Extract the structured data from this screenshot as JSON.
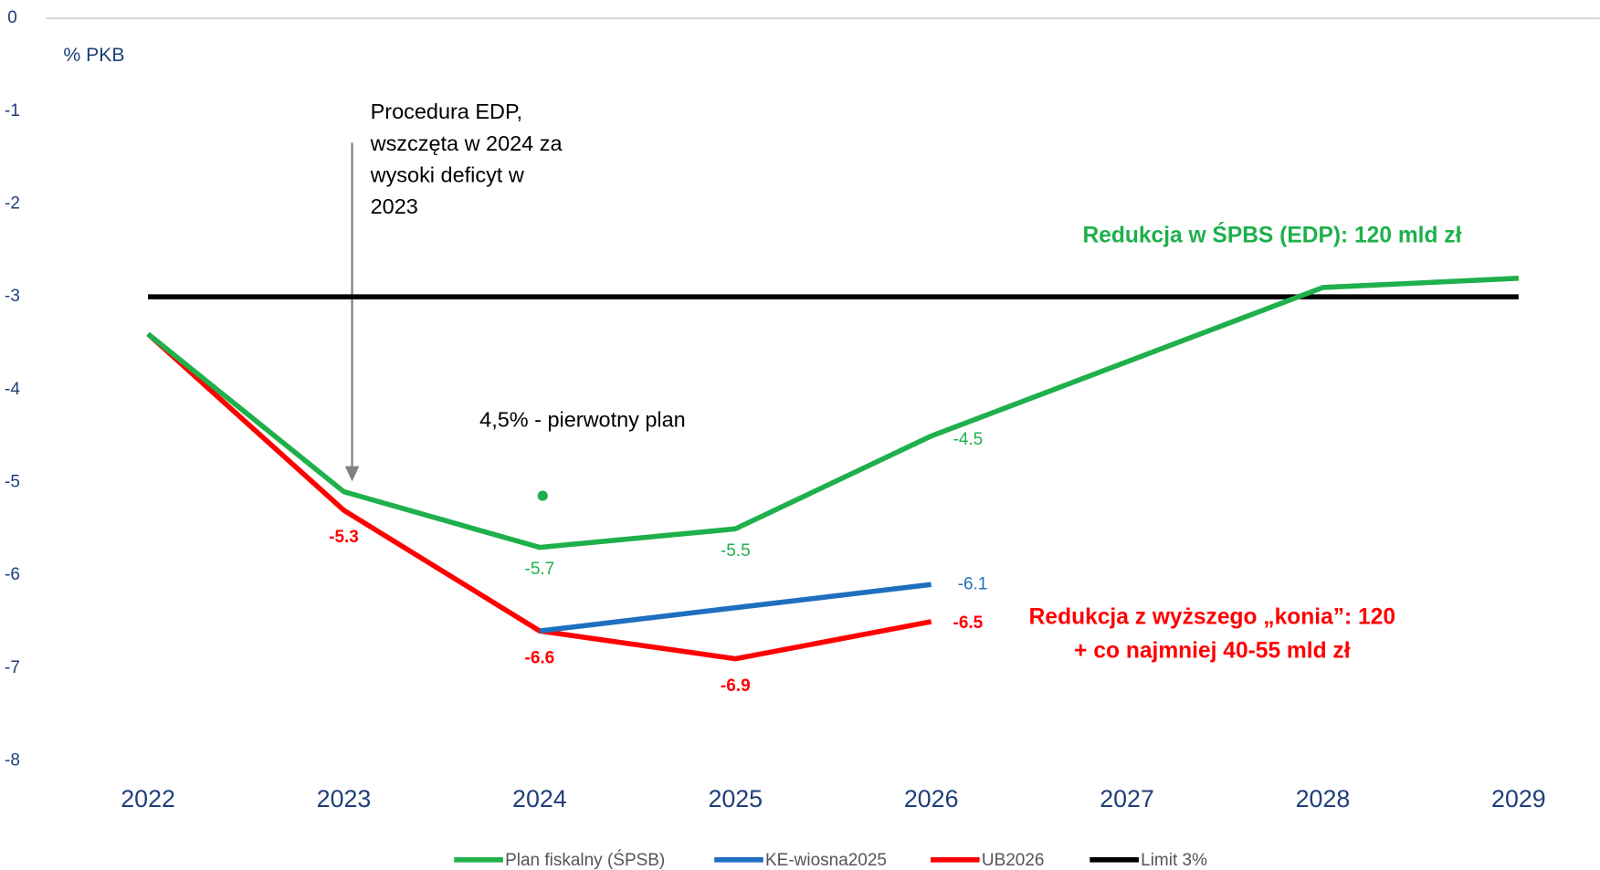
{
  "chart_data": {
    "type": "line",
    "y_axis_label": "% PKB",
    "categories": [
      "2022",
      "2023",
      "2024",
      "2025",
      "2026",
      "2027",
      "2028",
      "2029"
    ],
    "series": [
      {
        "name": "Plan fiskalny (ŚPSB)",
        "color": "#1fb04b",
        "values": [
          -3.4,
          -5.1,
          -5.7,
          -5.5,
          -4.5,
          -3.7,
          -2.9,
          -2.8
        ],
        "value_labels": [
          null,
          null,
          "-5.7",
          "-5.5",
          "-4.5",
          null,
          null,
          null
        ]
      },
      {
        "name": "KE-wiosna2025",
        "color": "#1f6fc0",
        "values": [
          null,
          null,
          -6.6,
          -6.35,
          -6.1,
          null,
          null,
          null
        ],
        "value_labels": [
          null,
          null,
          null,
          null,
          "-6.1",
          null,
          null,
          null
        ]
      },
      {
        "name": "UB2026",
        "color": "#ff0000",
        "values": [
          -3.4,
          -5.3,
          -6.6,
          -6.9,
          -6.5,
          null,
          null,
          null
        ],
        "value_labels": [
          null,
          "-5.3",
          "-6.6",
          "-6.9",
          "-6.5",
          null,
          null,
          null
        ]
      },
      {
        "name": "Limit 3%",
        "color": "#000000",
        "values": [
          -3,
          -3,
          -3,
          -3,
          -3,
          -3,
          -3,
          -3
        ]
      }
    ],
    "ylim": [
      -8,
      0
    ],
    "yticks": [
      0,
      -1,
      -2,
      -3,
      -4,
      -5,
      -6,
      -7,
      -8
    ],
    "legend": "bottom",
    "original_plan": {
      "x": "2024",
      "value": -5.1,
      "label": "4,5% - pierwotny plan"
    },
    "annotations": {
      "edp": [
        "Procedura EDP,",
        "wszczęta w 2024 za",
        "wysoki deficyt w",
        "2023"
      ],
      "green_note": "Redukcja w ŚPBS (EDP): 120 mld zł",
      "red_note": [
        "Redukcja z wyższego „konia”: 120",
        "+ co najmniej 40-55 mld zł"
      ]
    }
  }
}
